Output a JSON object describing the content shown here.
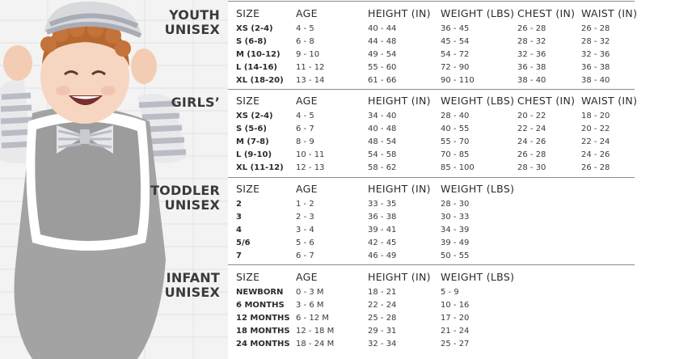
{
  "sections": [
    {
      "label_lines": [
        "YOUTH",
        "UNISEX"
      ],
      "headers": [
        "SIZE",
        "AGE",
        "HEIGHT (IN)",
        "WEIGHT (LBS)",
        "CHEST (IN)",
        "WAIST (IN)"
      ],
      "rows": [
        [
          "XS (2-4)",
          "4 - 5",
          "40 - 44",
          "36 - 45",
          "26 - 28",
          "26 - 28"
        ],
        [
          "S (6-8)",
          "6 - 8",
          "44 - 48",
          "45 - 54",
          "28 - 32",
          "28 - 32"
        ],
        [
          "M (10-12)",
          "9 - 10",
          "49 - 54",
          "54 - 72",
          "32 - 36",
          "32 - 36"
        ],
        [
          "L (14-16)",
          "11 - 12",
          "55 - 60",
          "72 - 90",
          "36 - 38",
          "36 - 38"
        ],
        [
          "XL (18-20)",
          "13 - 14",
          "61 - 66",
          "90 - 110",
          "38 - 40",
          "38 - 40"
        ]
      ]
    },
    {
      "label_lines": [
        "GIRLS’"
      ],
      "headers": [
        "SIZE",
        "AGE",
        "HEIGHT (IN)",
        "WEIGHT (LBS)",
        "CHEST (IN)",
        "WAIST (IN)"
      ],
      "rows": [
        [
          "XS (2-4)",
          "4 - 5",
          "34 - 40",
          "28 - 40",
          "20 - 22",
          "18 - 20"
        ],
        [
          "S (5-6)",
          "6 - 7",
          "40 - 48",
          "40 - 55",
          "22 - 24",
          "20 - 22"
        ],
        [
          "M (7-8)",
          "8 - 9",
          "48 - 54",
          "55 - 70",
          "24 - 26",
          "22 - 24"
        ],
        [
          "L (9-10)",
          "10 - 11",
          "54 - 58",
          "70 - 85",
          "26 - 28",
          "24 - 26"
        ],
        [
          "XL (11-12)",
          "12 - 13",
          "58 - 62",
          "85 - 100",
          "28 - 30",
          "26 - 28"
        ]
      ]
    },
    {
      "label_lines": [
        "TODDLER",
        "UNISEX"
      ],
      "headers": [
        "SIZE",
        "AGE",
        "HEIGHT (IN)",
        "WEIGHT (LBS)"
      ],
      "rows": [
        [
          "2",
          "1 - 2",
          "33 - 35",
          "28 - 30"
        ],
        [
          "3",
          "2 - 3",
          "36 - 38",
          "30 - 33"
        ],
        [
          "4",
          "3 - 4",
          "39 - 41",
          "34 - 39"
        ],
        [
          "5/6",
          "5 - 6",
          "42 - 45",
          "39 - 49"
        ],
        [
          "7",
          "6 - 7",
          "46 - 49",
          "50 - 55"
        ]
      ]
    },
    {
      "label_lines": [
        "INFANT",
        "UNISEX"
      ],
      "headers": [
        "SIZE",
        "AGE",
        "HEIGHT (IN)",
        "WEIGHT (LBS)"
      ],
      "rows": [
        [
          "NEWBORN",
          "0 - 3 M",
          "18 - 21",
          "5 - 9"
        ],
        [
          "6 MONTHS",
          "3 - 6 M",
          "22 - 24",
          "10 - 16"
        ],
        [
          "12 MONTHS",
          "6 - 12 M",
          "25 - 28",
          "17 - 20"
        ],
        [
          "18 MONTHS",
          "12 - 18 M",
          "29 - 31",
          "21 - 24"
        ],
        [
          "24 MONTHS",
          "18 - 24 M",
          "32 - 34",
          "25 - 27"
        ]
      ]
    }
  ],
  "colors": {
    "text": "#2b2b2b",
    "rule": "#8a8a8a",
    "shirt": "#9a9a9a",
    "stripe": "#b9bcc4",
    "hair": "#b8682e"
  }
}
